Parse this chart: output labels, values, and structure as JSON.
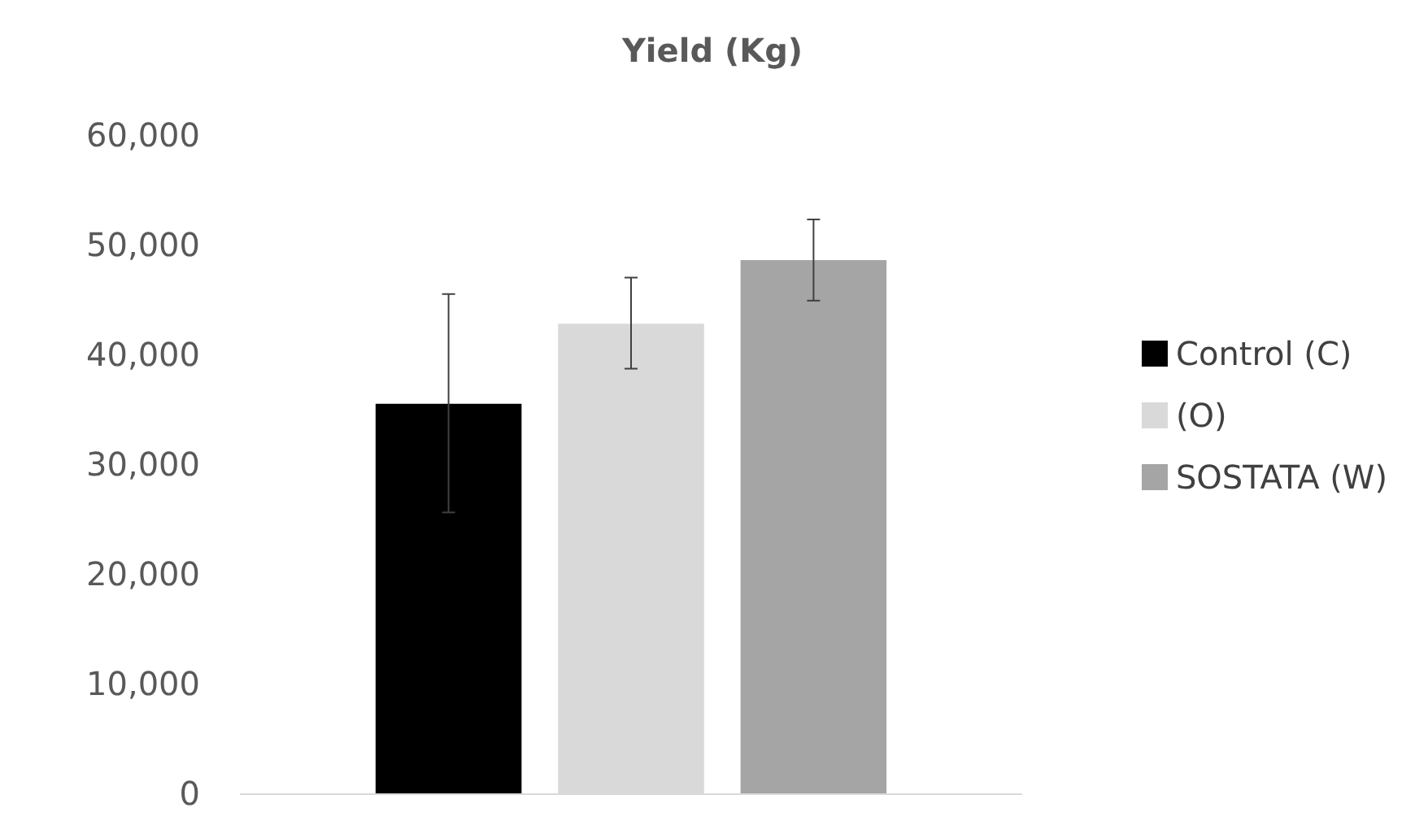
{
  "chart_data": {
    "type": "bar",
    "title": "Yield (Kg)",
    "categories": [
      null
    ],
    "series": [
      {
        "name": "Control (C)",
        "color": "#000000",
        "values": [
          35500
        ],
        "errors": [
          [
            25600,
            45500
          ]
        ]
      },
      {
        "name": "(O)",
        "color": "#d9d9d9",
        "values": [
          42800
        ],
        "errors": [
          [
            38700,
            47000
          ]
        ]
      },
      {
        "name": "SOSTATA (W)",
        "color": "#a5a5a5",
        "values": [
          48600
        ],
        "errors": [
          [
            44900,
            52300
          ]
        ]
      }
    ],
    "ylim": [
      0,
      60000
    ],
    "yticks": [
      0,
      {
        "value": 10000,
        "label": "10,000"
      },
      {
        "value": 20000,
        "label": "20,000"
      },
      {
        "value": 30000,
        "label": "30,000"
      },
      {
        "value": 40000,
        "label": "40,000"
      },
      {
        "value": 50000,
        "label": "50,000"
      },
      {
        "value": 60000,
        "label": "60,000"
      }
    ],
    "grid": false,
    "legend": "right"
  }
}
